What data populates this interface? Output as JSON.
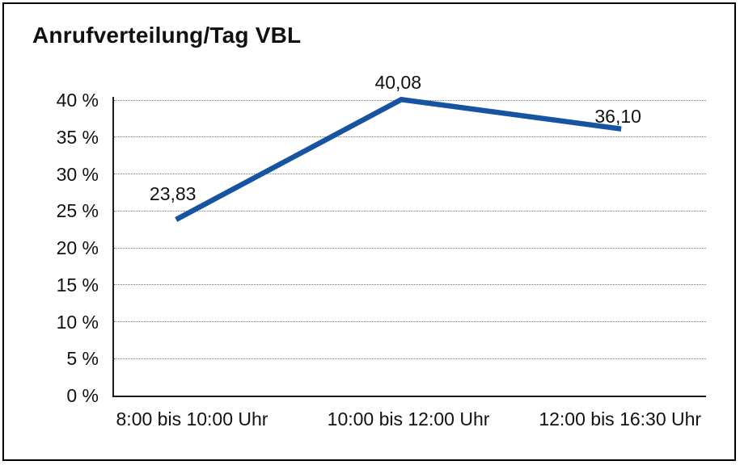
{
  "chart_data": {
    "type": "line",
    "title": "Anrufverteilung/Tag VBL",
    "categories": [
      "8:00 bis 10:00 Uhr",
      "10:00 bis 12:00 Uhr",
      "12:00 bis 16:30 Uhr"
    ],
    "values": [
      23.83,
      40.08,
      36.1
    ],
    "value_labels": [
      "23,83",
      "40,08",
      "36,10"
    ],
    "xlabel": "",
    "ylabel": "",
    "ylim": [
      0,
      40
    ],
    "ytick_step": 5,
    "ytick_labels": [
      "0 %",
      "5 %",
      "10 %",
      "15 %",
      "20 %",
      "25 %",
      "30 %",
      "35 %",
      "40 %"
    ],
    "grid": "horizontal-dotted",
    "legend_position": "none",
    "line_color": "#1654A1"
  },
  "colors": {
    "background": "#FFFFFF",
    "border": "#000000",
    "axis": "#1A1A1A",
    "grid": "#808080",
    "text": "#111111",
    "line": "#1654A1"
  }
}
